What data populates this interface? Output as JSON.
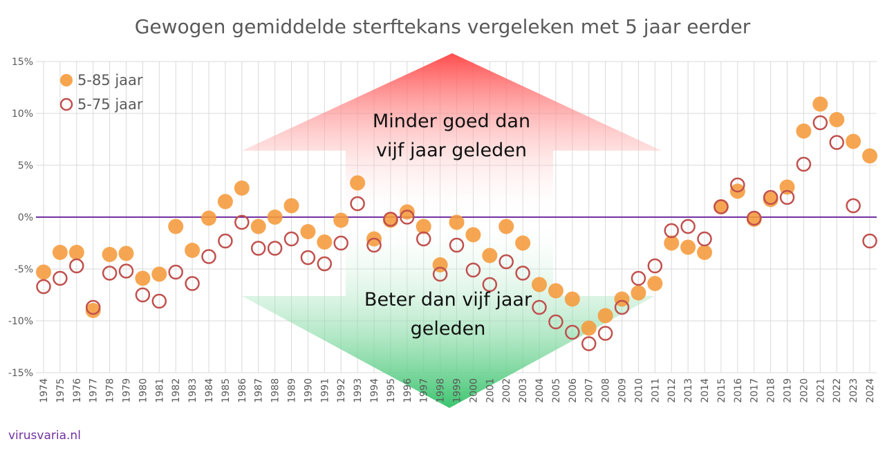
{
  "chart_data": {
    "type": "scatter",
    "title": "Gewogen gemiddelde sterftekans vergeleken met 5 jaar eerder",
    "xlabel": "",
    "ylabel": "",
    "ylim": [
      -15,
      15
    ],
    "yticks": [
      -15,
      -10,
      -5,
      0,
      5,
      10,
      15
    ],
    "ytick_labels": [
      "-15%",
      "-10%",
      "-5%",
      "0%",
      "5%",
      "10%",
      "15%"
    ],
    "grid": true,
    "legend_position": "top-left",
    "x": [
      1974,
      1975,
      1976,
      1977,
      1978,
      1979,
      1980,
      1981,
      1982,
      1983,
      1984,
      1985,
      1986,
      1987,
      1988,
      1989,
      1990,
      1991,
      1992,
      1993,
      1994,
      1995,
      1996,
      1997,
      1998,
      1999,
      2000,
      2001,
      2002,
      2003,
      2004,
      2005,
      2006,
      2007,
      2008,
      2009,
      2010,
      2011,
      2012,
      2013,
      2014,
      2015,
      2016,
      2017,
      2018,
      2019,
      2020,
      2021,
      2022,
      2023,
      2024
    ],
    "series": [
      {
        "name": "5-85 jaar",
        "style": "filled",
        "color": "#f59a3a",
        "values": [
          -5.3,
          -3.4,
          -3.4,
          -9.0,
          -3.6,
          -3.5,
          -5.9,
          -5.5,
          -0.9,
          -3.2,
          -0.1,
          1.5,
          2.8,
          -0.9,
          0.0,
          1.1,
          -1.4,
          -2.4,
          -0.3,
          3.3,
          -2.1,
          -0.3,
          0.5,
          -0.9,
          -4.6,
          -0.5,
          -1.7,
          -3.7,
          -0.9,
          -2.5,
          -6.5,
          -7.1,
          -7.9,
          -10.7,
          -9.5,
          -7.9,
          -7.3,
          -6.4,
          -2.5,
          -2.9,
          -3.4,
          1.0,
          2.5,
          -0.2,
          1.7,
          2.9,
          8.3,
          10.9,
          9.4,
          7.3,
          5.9
        ]
      },
      {
        "name": "5-75 jaar",
        "style": "open",
        "color": "#c0504d",
        "values": [
          -6.7,
          -5.9,
          -4.7,
          -8.7,
          -5.4,
          -5.2,
          -7.5,
          -8.1,
          -5.3,
          -6.4,
          -3.8,
          -2.3,
          -0.5,
          -3.0,
          -3.0,
          -2.1,
          -3.9,
          -4.5,
          -2.5,
          1.3,
          -2.7,
          -0.2,
          0.0,
          -2.1,
          -5.5,
          -2.7,
          -5.1,
          -6.5,
          -4.3,
          -5.4,
          -8.7,
          -10.1,
          -11.1,
          -12.2,
          -11.2,
          -8.7,
          -5.9,
          -4.7,
          -1.3,
          -0.9,
          -2.1,
          1.0,
          3.1,
          -0.1,
          1.9,
          1.9,
          5.1,
          9.1,
          7.2,
          1.1,
          -2.3
        ]
      }
    ],
    "annotations": {
      "up_line1": "Minder goed dan",
      "up_line2": "vijf jaar geleden",
      "down_line1": "Beter dan vijf jaar",
      "down_line2": "geleden"
    },
    "zero_line_color": "#7030a0"
  },
  "watermark": "virusvaria.nl"
}
